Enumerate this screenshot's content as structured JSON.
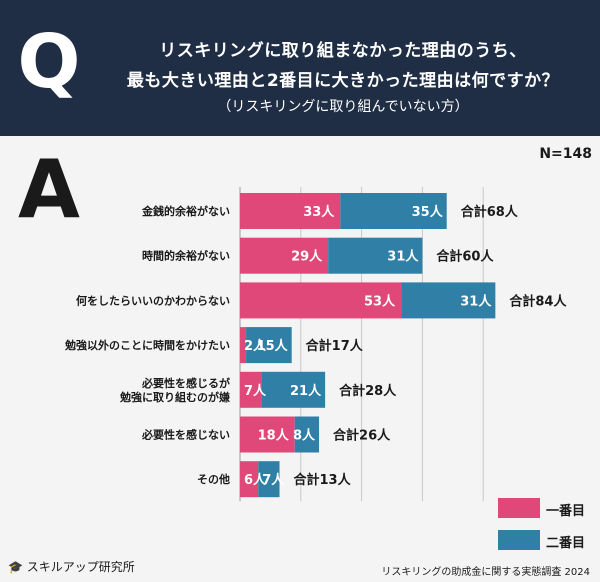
{
  "header": {
    "q_letter": "Q",
    "line1": "リスキリングに取り組まなかった理由のうち、",
    "line2": "最も大きい理由と2番目に大きかった理由は何ですか？",
    "subtitle": "（リスキリングに取り組んでいない方）"
  },
  "answer_letter": "A",
  "sample_size": "N=148",
  "legend": {
    "first": "一番目",
    "second": "二番目"
  },
  "colors": {
    "first": "#e0487a",
    "second": "#2f7fa6",
    "header_bg": "#1f2e45"
  },
  "footer": {
    "logo_text": "スキルアップ研究所",
    "source": "リスキリングの助成金に関する実態調査 2024"
  },
  "chart_data": {
    "type": "bar",
    "orientation": "horizontal",
    "stacked": true,
    "categories": [
      "金銭的余裕がない",
      "時間的余裕がない",
      "何をしたらいいのかわからない",
      "勉強以外のことに時間をかけたい",
      "必要性を感じるが\n勉強に取り組むのが嫌",
      "必要性を感じない",
      "その他"
    ],
    "series": [
      {
        "name": "一番目",
        "values": [
          33,
          29,
          53,
          2,
          7,
          18,
          6
        ]
      },
      {
        "name": "二番目",
        "values": [
          35,
          31,
          31,
          15,
          21,
          8,
          7
        ]
      }
    ],
    "value_labels": {
      "first": [
        "33人",
        "29人",
        "53人",
        "2人",
        "7人",
        "18人",
        "6人"
      ],
      "second": [
        "35人",
        "31人",
        "31人",
        "15人",
        "21人",
        "8人",
        "7人"
      ]
    },
    "total_labels": [
      "合計68人",
      "合計60人",
      "合計84人",
      "合計17人",
      "合計28人",
      "合計26人",
      "合計13人"
    ],
    "xlim": [
      0,
      90
    ],
    "grid": true,
    "legend_position": "bottom-right"
  }
}
